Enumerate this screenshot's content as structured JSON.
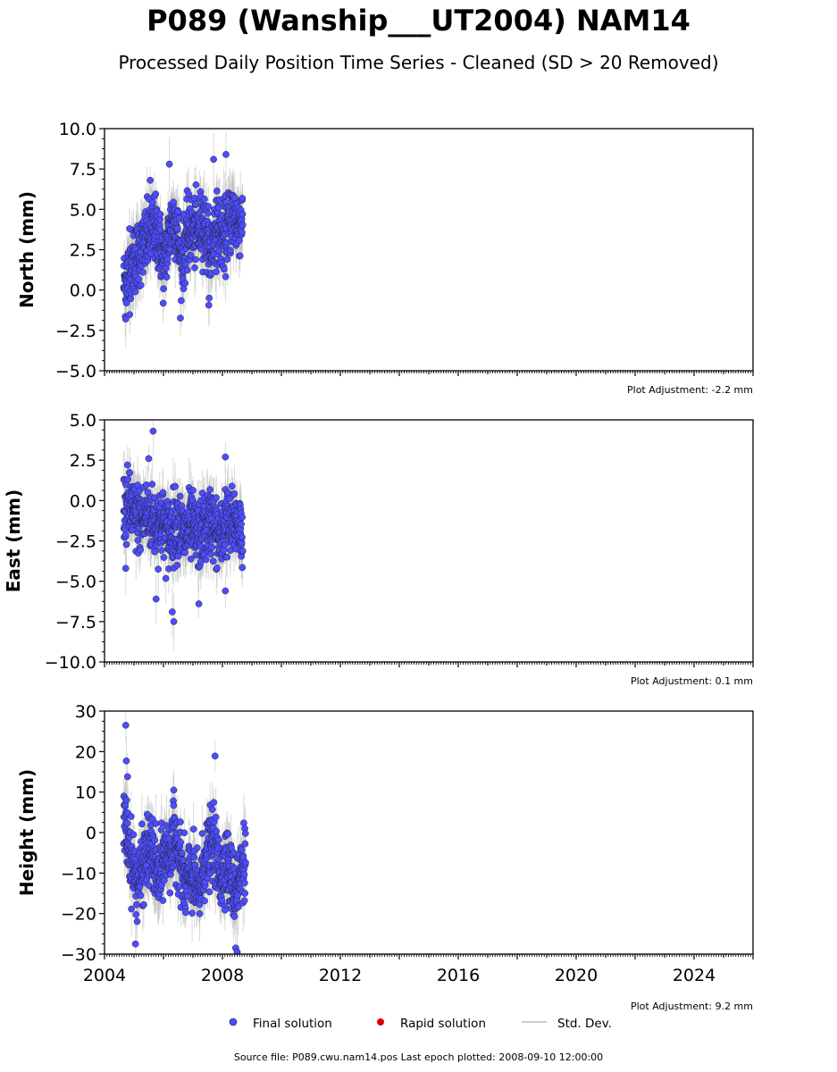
{
  "title": "P089 (Wanship___UT2004) NAM14",
  "subtitle": "Processed Daily Position Time Series - Cleaned (SD > 20 Removed)",
  "legend": {
    "final": "Final solution",
    "rapid": "Rapid solution",
    "std": "Std. Dev."
  },
  "colors": {
    "final": "#4d4dff",
    "rapid": "#dd0000",
    "std": "#bbbbbb"
  },
  "footer": "Source file: P089.cwu.nam14.pos  Last epoch plotted: 2008-09-10 12:00:00",
  "chart_data": [
    {
      "type": "scatter",
      "ylabel": "North (mm)",
      "xlim": [
        2004.0,
        2026.0
      ],
      "ylim": [
        -5.0,
        10.0
      ],
      "yticks": [
        "10.0",
        "7.5",
        "5.0",
        "2.5",
        "0.0",
        "−2.5",
        "−5.0"
      ],
      "ytick_values": [
        10.0,
        7.5,
        5.0,
        2.5,
        0.0,
        -2.5,
        -5.0
      ],
      "adjustment": "Plot Adjustment: -2.2 mm",
      "data_range": [
        2004.65,
        2008.69
      ],
      "series": [
        {
          "name": "Final solution",
          "x": [
            2004.7,
            2004.78,
            2004.9,
            2005.0,
            2005.1,
            2005.25,
            2005.4,
            2005.55,
            2005.7,
            2005.85,
            2006.0,
            2006.15,
            2006.3,
            2006.45,
            2006.6,
            2006.75,
            2006.9,
            2007.05,
            2007.2,
            2007.35,
            2007.5,
            2007.6,
            2007.75,
            2007.9,
            2008.05,
            2008.2,
            2008.35,
            2008.5,
            2008.65
          ],
          "y": [
            0.5,
            0.8,
            1.5,
            1.8,
            2.2,
            2.5,
            3.0,
            3.5,
            3.8,
            3.2,
            1.5,
            3.0,
            4.5,
            4.0,
            1.5,
            3.0,
            3.8,
            3.5,
            3.8,
            4.2,
            3.0,
            2.0,
            4.0,
            3.6,
            3.2,
            4.0,
            4.8,
            4.0,
            4.5
          ],
          "outliers": [
            [
              2004.72,
              -1.8
            ],
            [
              2005.55,
              6.8
            ],
            [
              2006.2,
              7.8
            ],
            [
              2007.7,
              8.1
            ],
            [
              2008.12,
              8.4
            ],
            [
              2007.55,
              -0.5
            ],
            [
              2004.85,
              3.8
            ]
          ]
        }
      ]
    },
    {
      "type": "scatter",
      "ylabel": "East (mm)",
      "xlim": [
        2004.0,
        2026.0
      ],
      "ylim": [
        -10.0,
        5.0
      ],
      "yticks": [
        "5.0",
        "2.5",
        "0.0",
        "−2.5",
        "−5.0",
        "−7.5",
        "−10.0"
      ],
      "ytick_values": [
        5.0,
        2.5,
        0.0,
        -2.5,
        -5.0,
        -7.5,
        -10.0
      ],
      "adjustment": "Plot Adjustment: 0.1 mm",
      "data_range": [
        2004.65,
        2008.69
      ],
      "series": [
        {
          "name": "Final solution",
          "x": [
            2004.7,
            2004.8,
            2004.95,
            2005.1,
            2005.25,
            2005.4,
            2005.55,
            2005.7,
            2005.85,
            2006.0,
            2006.15,
            2006.3,
            2006.45,
            2006.6,
            2006.75,
            2006.9,
            2007.05,
            2007.2,
            2007.35,
            2007.5,
            2007.65,
            2007.8,
            2007.95,
            2008.1,
            2008.25,
            2008.4,
            2008.55,
            2008.65
          ],
          "y": [
            -0.5,
            -0.2,
            -0.8,
            -1.0,
            -1.2,
            -0.8,
            -1.0,
            -1.5,
            -1.2,
            -1.5,
            -2.0,
            -1.8,
            -1.2,
            -1.8,
            -2.2,
            -1.5,
            -2.0,
            -2.2,
            -1.8,
            -1.5,
            -1.2,
            -2.0,
            -2.5,
            -1.0,
            -1.8,
            -1.2,
            -1.5,
            -1.8
          ],
          "outliers": [
            [
              2005.65,
              4.3
            ],
            [
              2005.5,
              2.6
            ],
            [
              2006.35,
              -7.5
            ],
            [
              2006.3,
              -6.9
            ],
            [
              2005.75,
              -6.1
            ],
            [
              2008.1,
              2.7
            ],
            [
              2004.72,
              -4.2
            ],
            [
              2007.2,
              -6.4
            ],
            [
              2008.1,
              -5.6
            ]
          ]
        }
      ]
    },
    {
      "type": "scatter",
      "ylabel": "Height (mm)",
      "xlim": [
        2004.0,
        2026.0
      ],
      "ylim": [
        -30,
        30
      ],
      "yticks": [
        "30",
        "20",
        "10",
        "0",
        "−10",
        "−20",
        "−30"
      ],
      "ytick_values": [
        30,
        20,
        10,
        0,
        -10,
        -20,
        -30
      ],
      "xticks": [
        "2004",
        "2008",
        "2012",
        "2016",
        "2020",
        "2024"
      ],
      "xtick_values": [
        2004,
        2008,
        2012,
        2016,
        2020,
        2024
      ],
      "adjustment": "Plot Adjustment: 9.2 mm",
      "data_range": [
        2004.65,
        2008.79
      ],
      "series": [
        {
          "name": "Final solution",
          "x": [
            2004.7,
            2004.8,
            2004.95,
            2005.1,
            2005.25,
            2005.4,
            2005.55,
            2005.7,
            2005.85,
            2006.0,
            2006.15,
            2006.3,
            2006.45,
            2006.6,
            2006.75,
            2006.9,
            2007.05,
            2007.2,
            2007.35,
            2007.5,
            2007.65,
            2007.8,
            2007.95,
            2008.1,
            2008.25,
            2008.4,
            2008.55,
            2008.75
          ],
          "y": [
            2.0,
            -2.0,
            -8.0,
            -12.0,
            -10.0,
            -6.0,
            -4.0,
            -8.0,
            -12.0,
            -6.0,
            -5.0,
            -4.0,
            -2.0,
            -8.0,
            -14.0,
            -10.0,
            -12.0,
            -16.0,
            -8.0,
            -6.0,
            -2.0,
            -6.0,
            -12.0,
            -6.0,
            -10.0,
            -14.0,
            -12.0,
            -6.0
          ],
          "outliers": [
            [
              2004.72,
              26.5
            ],
            [
              2004.74,
              17.7
            ],
            [
              2004.78,
              13.8
            ],
            [
              2007.75,
              18.9
            ],
            [
              2005.05,
              -27.5
            ],
            [
              2008.45,
              -28.5
            ],
            [
              2008.5,
              -29.5
            ],
            [
              2006.35,
              10.5
            ],
            [
              2005.45,
              4.5
            ]
          ]
        }
      ]
    }
  ]
}
